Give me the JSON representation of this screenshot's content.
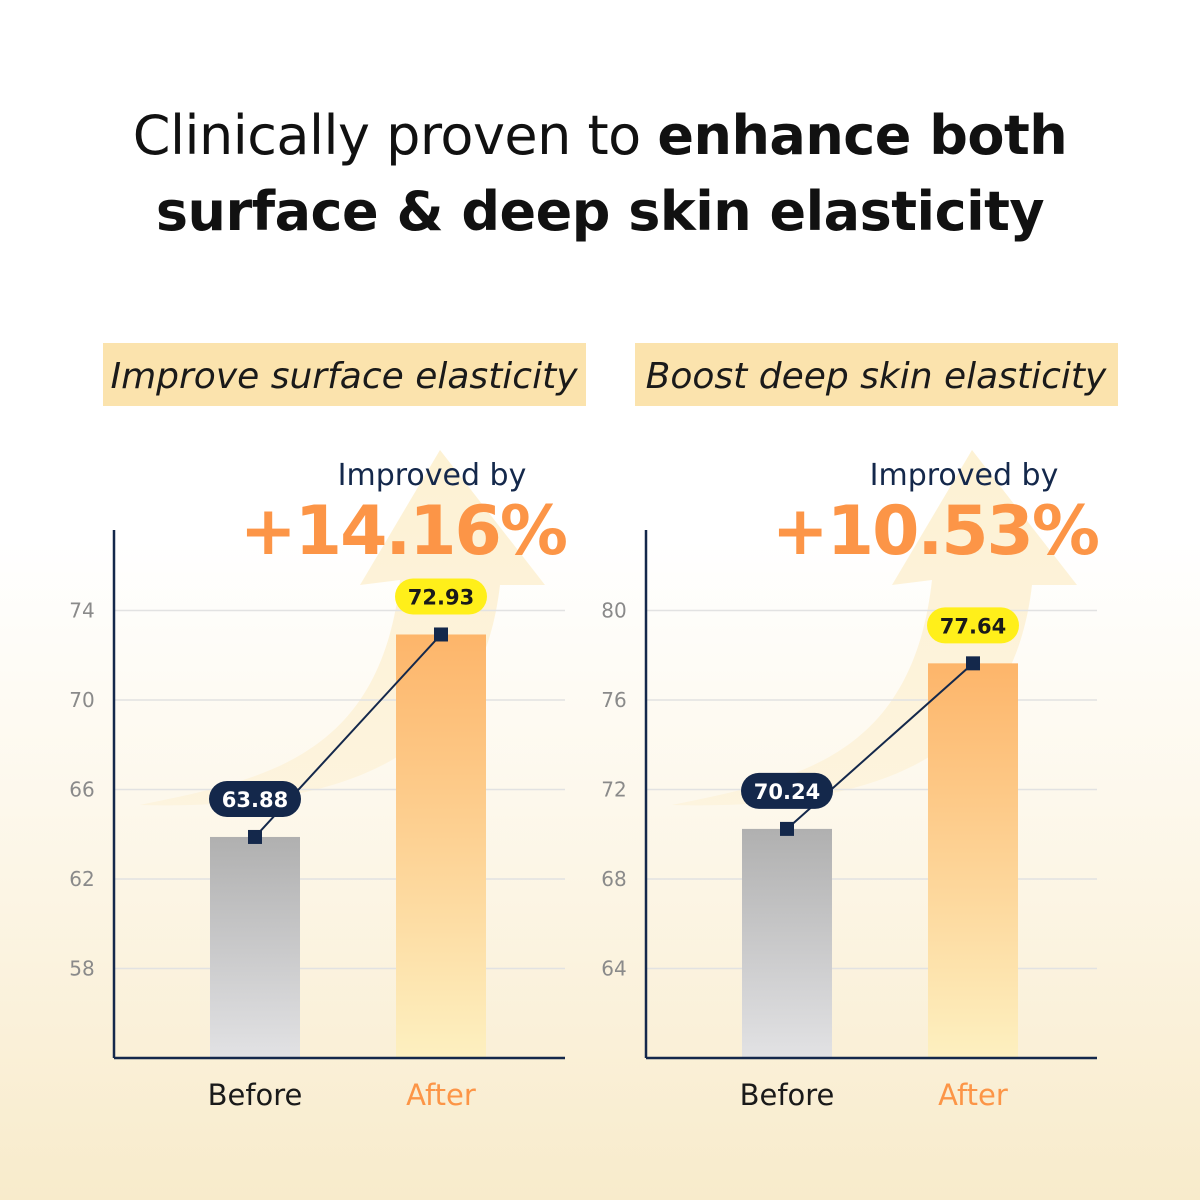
{
  "title": {
    "line1_regular": "Clinically proven to ",
    "line1_bold": "enhance both",
    "line2_bold": "surface & deep skin elasticity"
  },
  "colors": {
    "label_bg": "#fbe3ad",
    "before_bar_top": "#b0b0b0",
    "before_bar_bottom": "#e2e2e4",
    "after_bar_top": "#fdb56a",
    "after_bar_bottom": "#fdf0c0",
    "navy": "#14284b",
    "orange": "#fc9547",
    "yellow_badge": "#ffef1a"
  },
  "chart_data": [
    {
      "type": "bar",
      "title": "Improve surface elasticity",
      "annotation_label": "Improved by",
      "annotation_value": "+14.16%",
      "categories": [
        "Before",
        "After"
      ],
      "values": [
        63.88,
        72.93
      ],
      "value_labels": [
        "63.88",
        "72.93"
      ],
      "yticks": [
        58,
        62,
        66,
        70,
        74
      ],
      "ylim": [
        54,
        77.6
      ],
      "grid": true,
      "connecting_line": true
    },
    {
      "type": "bar",
      "title": "Boost deep skin elasticity",
      "annotation_label": "Improved by",
      "annotation_value": "+10.53%",
      "categories": [
        "Before",
        "After"
      ],
      "values": [
        70.24,
        77.64
      ],
      "value_labels": [
        "70.24",
        "77.64"
      ],
      "yticks": [
        64,
        68,
        72,
        76,
        80
      ],
      "ylim": [
        60,
        83.6
      ],
      "grid": true,
      "connecting_line": true
    }
  ]
}
